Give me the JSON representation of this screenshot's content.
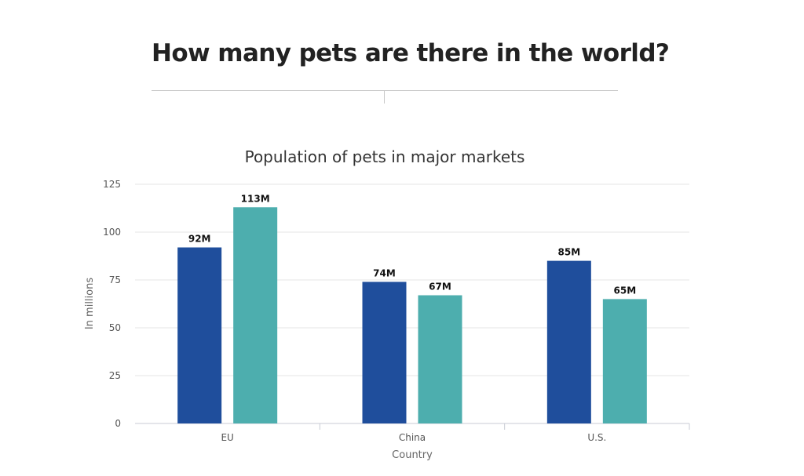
{
  "page": {
    "heading": "How many pets are there in the world?"
  },
  "chart_data": {
    "type": "bar",
    "title": "Population of pets in major markets",
    "xlabel": "Country",
    "ylabel": "In millions",
    "categories": [
      "EU",
      "China",
      "U.S."
    ],
    "series": [
      {
        "color": "#1f4e9c",
        "values": [
          92,
          74,
          85
        ],
        "labels": [
          "92M",
          "74M",
          "85M"
        ]
      },
      {
        "color": "#4daeae",
        "values": [
          113,
          67,
          65
        ],
        "labels": [
          "113M",
          "67M",
          "65M"
        ]
      }
    ],
    "ylim": [
      0,
      125
    ],
    "yticks": [
      0,
      25,
      50,
      75,
      100,
      125
    ],
    "grid": true,
    "legend": "none"
  }
}
